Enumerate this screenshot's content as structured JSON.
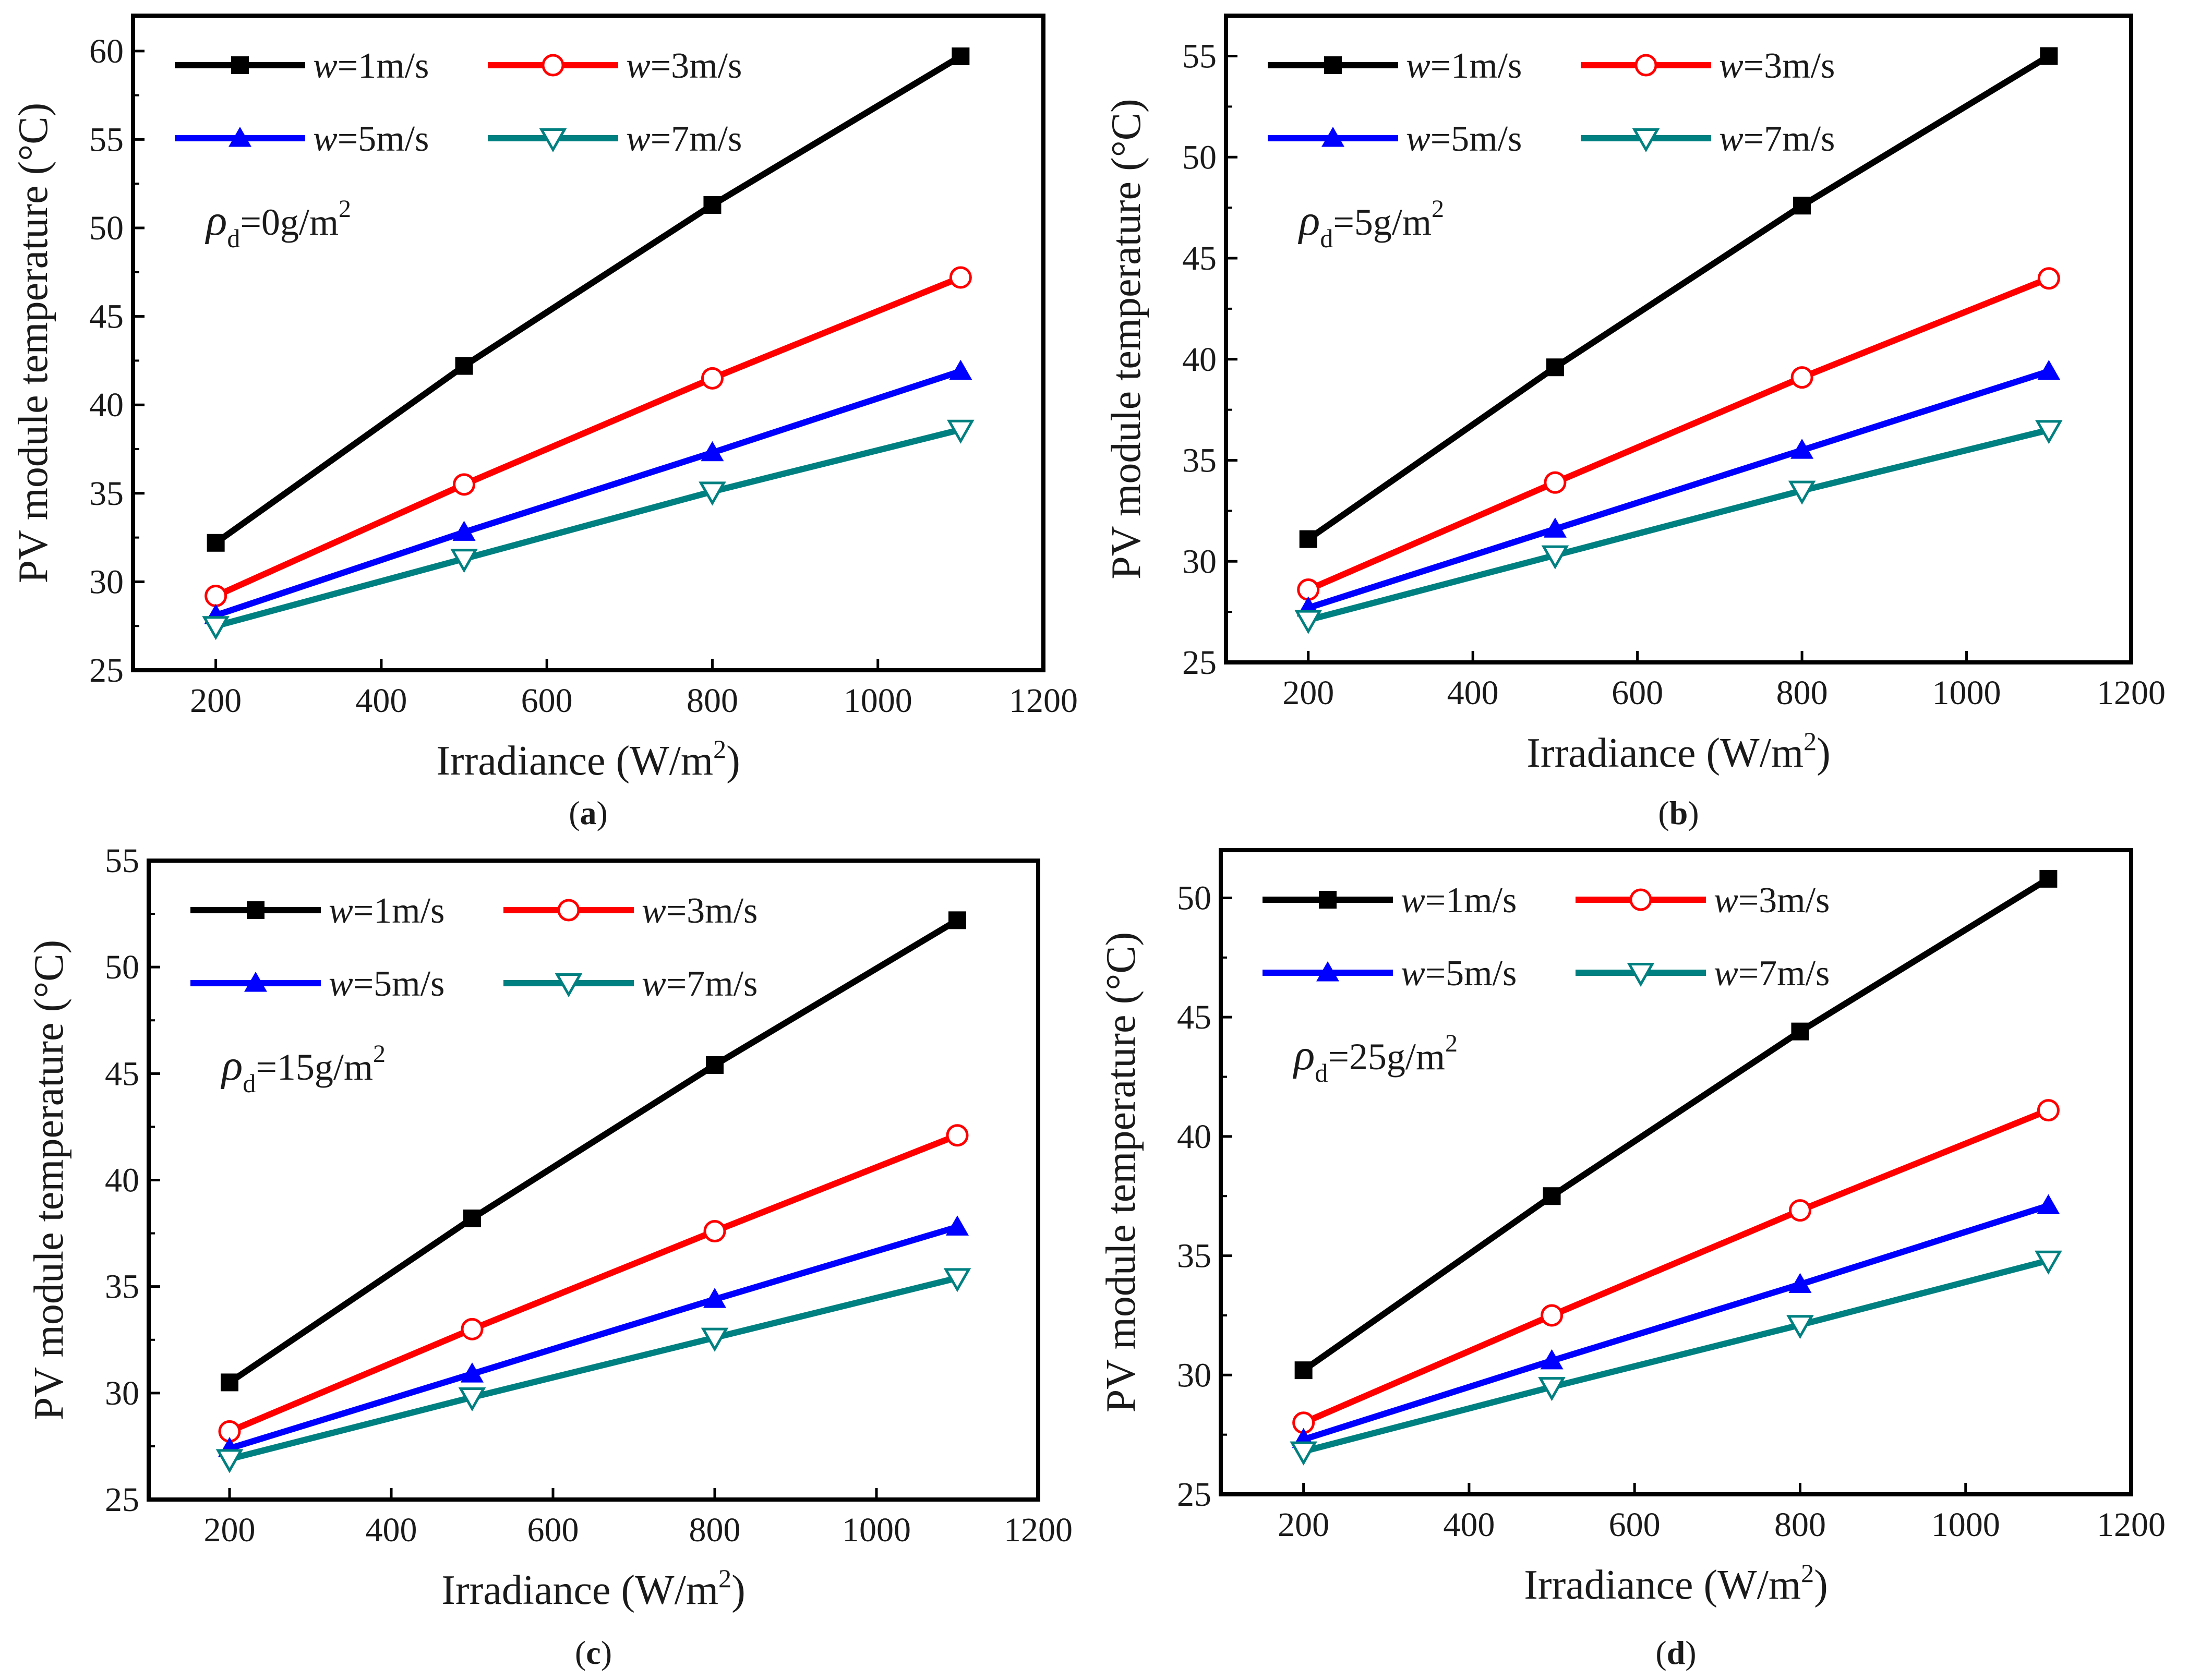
{
  "chart_data": [
    {
      "type": "line",
      "panel": "a",
      "caption": "a",
      "xlabel": "Irradiance (W/m",
      "xlabel_sup": "2",
      "xlabel_end": ")",
      "ylabel": "PV module temperature (°C)",
      "xlim": [
        100,
        1200
      ],
      "ylim": [
        25,
        62
      ],
      "xticks": [
        200,
        400,
        600,
        800,
        1000,
        1200
      ],
      "yticks": [
        25,
        30,
        35,
        40,
        45,
        50,
        55,
        60
      ],
      "annotation": {
        "symbol": "ρ",
        "sub": "d",
        "text": "=0g/m",
        "sup": "2"
      },
      "x": [
        200,
        500,
        800,
        1100
      ],
      "series": [
        {
          "name": "w=1m/s",
          "label_var": "w",
          "label_rest": "=1m/s",
          "color": "#000000",
          "marker": "square-filled",
          "values": [
            32.2,
            42.2,
            51.3,
            59.7
          ]
        },
        {
          "name": "w=3m/s",
          "label_var": "w",
          "label_rest": "=3m/s",
          "color": "#ff0000",
          "marker": "circle-open",
          "values": [
            29.2,
            35.5,
            41.5,
            47.2
          ]
        },
        {
          "name": "w=5m/s",
          "label_var": "w",
          "label_rest": "=5m/s",
          "color": "#0000ff",
          "marker": "triangle-up-filled",
          "values": [
            28.1,
            32.8,
            37.3,
            41.9
          ]
        },
        {
          "name": "w=7m/s",
          "label_var": "w",
          "label_rest": "=7m/s",
          "color": "#008080",
          "marker": "triangle-down-open",
          "values": [
            27.5,
            31.3,
            35.1,
            38.6
          ]
        }
      ]
    },
    {
      "type": "line",
      "panel": "b",
      "caption": "b",
      "xlabel": "Irradiance (W/m",
      "xlabel_sup": "2",
      "xlabel_end": ")",
      "ylabel": "PV module temperature (°C)",
      "xlim": [
        100,
        1200
      ],
      "ylim": [
        25,
        57
      ],
      "xticks": [
        200,
        400,
        600,
        800,
        1000,
        1200
      ],
      "yticks": [
        25,
        30,
        35,
        40,
        45,
        50,
        55
      ],
      "annotation": {
        "symbol": "ρ",
        "sub": "d",
        "text": "=5g/m",
        "sup": "2"
      },
      "x": [
        200,
        500,
        800,
        1100
      ],
      "series": [
        {
          "name": "w=1m/s",
          "label_var": "w",
          "label_rest": "=1m/s",
          "color": "#000000",
          "marker": "square-filled",
          "values": [
            31.1,
            39.6,
            47.6,
            55.0
          ]
        },
        {
          "name": "w=3m/s",
          "label_var": "w",
          "label_rest": "=3m/s",
          "color": "#ff0000",
          "marker": "circle-open",
          "values": [
            28.6,
            33.9,
            39.1,
            44.0
          ]
        },
        {
          "name": "w=5m/s",
          "label_var": "w",
          "label_rest": "=5m/s",
          "color": "#0000ff",
          "marker": "triangle-up-filled",
          "values": [
            27.7,
            31.6,
            35.5,
            39.4
          ]
        },
        {
          "name": "w=7m/s",
          "label_var": "w",
          "label_rest": "=7m/s",
          "color": "#008080",
          "marker": "triangle-down-open",
          "values": [
            27.1,
            30.3,
            33.5,
            36.5
          ]
        }
      ]
    },
    {
      "type": "line",
      "panel": "c",
      "caption": "c",
      "xlabel": "Irradiance (W/m",
      "xlabel_sup": "2",
      "xlabel_end": ")",
      "ylabel": "PV module temperature (°C)",
      "xlim": [
        100,
        1200
      ],
      "ylim": [
        25,
        55
      ],
      "xticks": [
        200,
        400,
        600,
        800,
        1000,
        1200
      ],
      "yticks": [
        25,
        30,
        35,
        40,
        45,
        50,
        55
      ],
      "annotation": {
        "symbol": "ρ",
        "sub": "d",
        "text": "=15g/m",
        "sup": "2"
      },
      "x": [
        200,
        500,
        800,
        1100
      ],
      "series": [
        {
          "name": "w=1m/s",
          "label_var": "w",
          "label_rest": "=1m/s",
          "color": "#000000",
          "marker": "square-filled",
          "values": [
            30.5,
            38.2,
            45.4,
            52.2
          ]
        },
        {
          "name": "w=3m/s",
          "label_var": "w",
          "label_rest": "=3m/s",
          "color": "#ff0000",
          "marker": "circle-open",
          "values": [
            28.2,
            33.0,
            37.6,
            42.1
          ]
        },
        {
          "name": "w=5m/s",
          "label_var": "w",
          "label_rest": "=5m/s",
          "color": "#0000ff",
          "marker": "triangle-up-filled",
          "values": [
            27.4,
            30.9,
            34.4,
            37.8
          ]
        },
        {
          "name": "w=7m/s",
          "label_var": "w",
          "label_rest": "=7m/s",
          "color": "#008080",
          "marker": "triangle-down-open",
          "values": [
            26.9,
            29.8,
            32.6,
            35.4
          ]
        }
      ]
    },
    {
      "type": "line",
      "panel": "d",
      "caption": "d",
      "xlabel": "Irradiance (W/m",
      "xlabel_sup": "2",
      "xlabel_end": ")",
      "ylabel": "PV module temperature (°C)",
      "xlim": [
        100,
        1200
      ],
      "ylim": [
        25,
        52
      ],
      "xticks": [
        200,
        400,
        600,
        800,
        1000,
        1200
      ],
      "yticks": [
        25,
        30,
        35,
        40,
        45,
        50
      ],
      "annotation": {
        "symbol": "ρ",
        "sub": "d",
        "text": "=25g/m",
        "sup": "2"
      },
      "x": [
        200,
        500,
        800,
        1100
      ],
      "series": [
        {
          "name": "w=1m/s",
          "label_var": "w",
          "label_rest": "=1m/s",
          "color": "#000000",
          "marker": "square-filled",
          "values": [
            30.2,
            37.5,
            44.4,
            50.8
          ]
        },
        {
          "name": "w=3m/s",
          "label_var": "w",
          "label_rest": "=3m/s",
          "color": "#ff0000",
          "marker": "circle-open",
          "values": [
            28.0,
            32.5,
            36.9,
            41.1
          ]
        },
        {
          "name": "w=5m/s",
          "label_var": "w",
          "label_rest": "=5m/s",
          "color": "#0000ff",
          "marker": "triangle-up-filled",
          "values": [
            27.3,
            30.6,
            33.8,
            37.1
          ]
        },
        {
          "name": "w=7m/s",
          "label_var": "w",
          "label_rest": "=7m/s",
          "color": "#008080",
          "marker": "triangle-down-open",
          "values": [
            26.8,
            29.5,
            32.1,
            34.8
          ]
        }
      ]
    }
  ]
}
